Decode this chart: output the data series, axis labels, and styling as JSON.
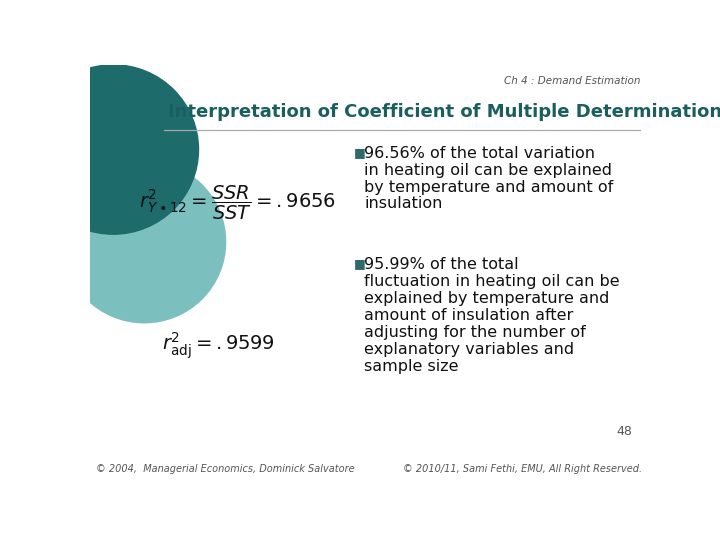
{
  "bg_color": "#ffffff",
  "header_text": "Ch 4 : Demand Estimation",
  "title_text": "Interpretation of Coefficient of Multiple Determination",
  "title_color": "#1a5e5e",
  "footer_left": "© 2004,  Managerial Economics, Dominick Salvatore",
  "footer_right": "© 2010/11, Sami Fethi, EMU, All Right Reserved.",
  "page_number": "48",
  "bullet_color": "#2d6b6b",
  "bullet1_line1": "■96.56% of the total variation",
  "bullet1_line2": "in heating oil can be explained",
  "bullet1_line3": "by temperature and amount of",
  "bullet1_line4": "insulation",
  "bullet2_line1": "■95.99% of the total",
  "bullet2_line2": "fluctuation in heating oil can be",
  "bullet2_line3": "explained by temperature and",
  "bullet2_line4": "amount of insulation after",
  "bullet2_line5": "adjusting for the number of",
  "bullet2_line6": "explanatory variables and",
  "bullet2_line7": "sample size",
  "circle_color1": "#1e6b6b",
  "circle_color2": "#7bbfbf",
  "line_color": "#aaaaaa",
  "text_color": "#111111",
  "header_color": "#555555"
}
